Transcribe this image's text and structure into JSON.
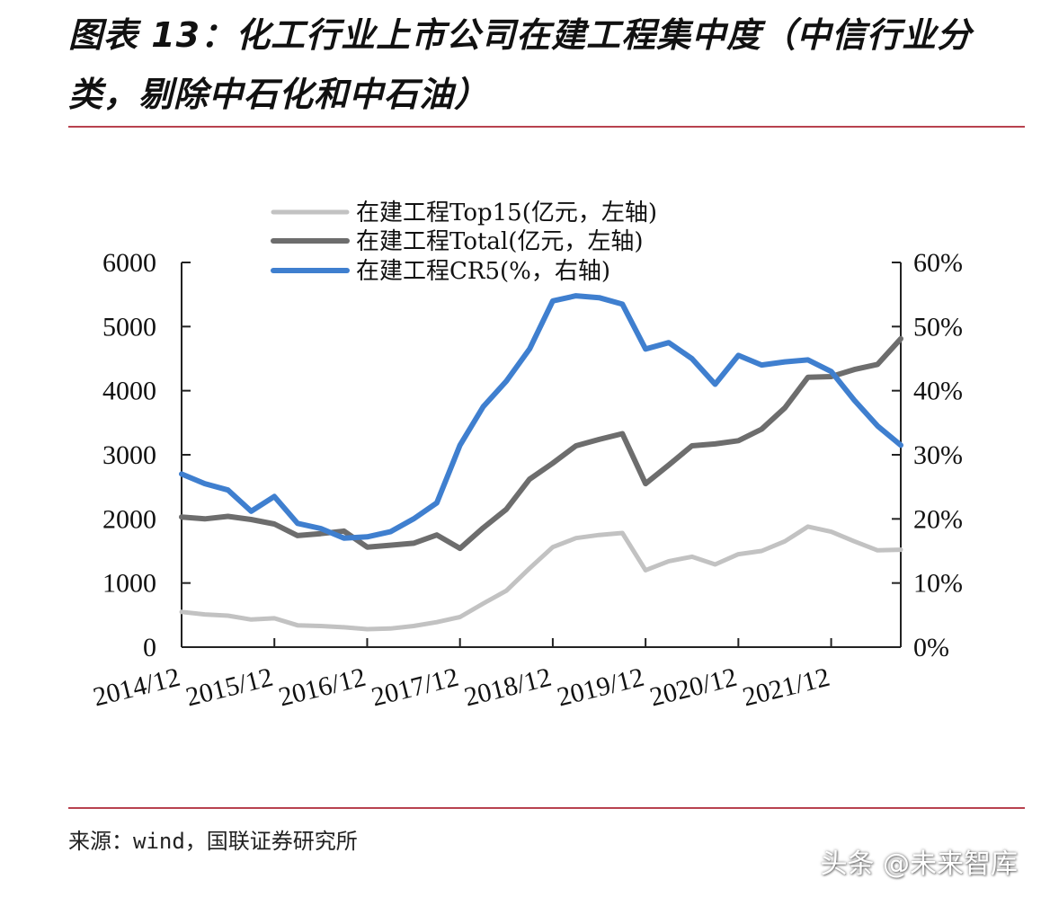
{
  "title": "图表 13：化工行业上市公司在建工程集中度（中信行业分类，剔除中石化和中石油）",
  "source": "来源：wind，国联证券研究所",
  "watermark": "头条 @未来智库",
  "chart_data": {
    "type": "line",
    "x_tick_labels": [
      "2014/12",
      "2015/12",
      "2016/12",
      "2017/12",
      "2018/12",
      "2019/12",
      "2020/12",
      "2021/12"
    ],
    "x_period": "quarterly, 2014Q4 to 2022Q3",
    "left_axis": {
      "ticks": [
        "0",
        "1000",
        "2000",
        "3000",
        "4000",
        "5000",
        "6000"
      ],
      "ylim": [
        0,
        6000
      ]
    },
    "right_axis": {
      "ticks": [
        "0%",
        "10%",
        "20%",
        "30%",
        "40%",
        "50%",
        "60%"
      ],
      "ylim": [
        0,
        60
      ]
    },
    "colors": {
      "top15": "#c2c2c2",
      "total": "#6d6d6d",
      "cr5": "#3f7fcf",
      "rule": "#b8424f"
    },
    "legend_position": "top-left",
    "grid": false,
    "series": [
      {
        "name": "在建工程Top15(亿元，左轴)",
        "axis": "left",
        "values": [
          550,
          510,
          490,
          430,
          450,
          340,
          330,
          310,
          280,
          290,
          330,
          390,
          470,
          680,
          880,
          1230,
          1560,
          1700,
          1750,
          1780,
          1200,
          1340,
          1410,
          1290,
          1450,
          1500,
          1650,
          1880,
          1800,
          1650,
          1510,
          1520
        ]
      },
      {
        "name": "在建工程Total(亿元，左轴)",
        "axis": "left",
        "values": [
          2030,
          2000,
          2040,
          1990,
          1920,
          1740,
          1770,
          1810,
          1560,
          1590,
          1620,
          1750,
          1540,
          1860,
          2150,
          2620,
          2870,
          3140,
          3240,
          3330,
          2550,
          2840,
          3140,
          3170,
          3220,
          3400,
          3730,
          4210,
          4220,
          4330,
          4410,
          4810
        ]
      },
      {
        "name": "在建工程CR5(%，右轴)",
        "axis": "right",
        "values": [
          27,
          25.5,
          24.5,
          21.2,
          23.5,
          19.3,
          18.5,
          17,
          17.2,
          18,
          20,
          22.5,
          31.5,
          37.5,
          41.5,
          46.5,
          54,
          54.8,
          54.5,
          53.5,
          46.5,
          47.5,
          45,
          41,
          45.5,
          44,
          44.5,
          44.8,
          43,
          38.5,
          34.5,
          31.5
        ]
      }
    ]
  }
}
